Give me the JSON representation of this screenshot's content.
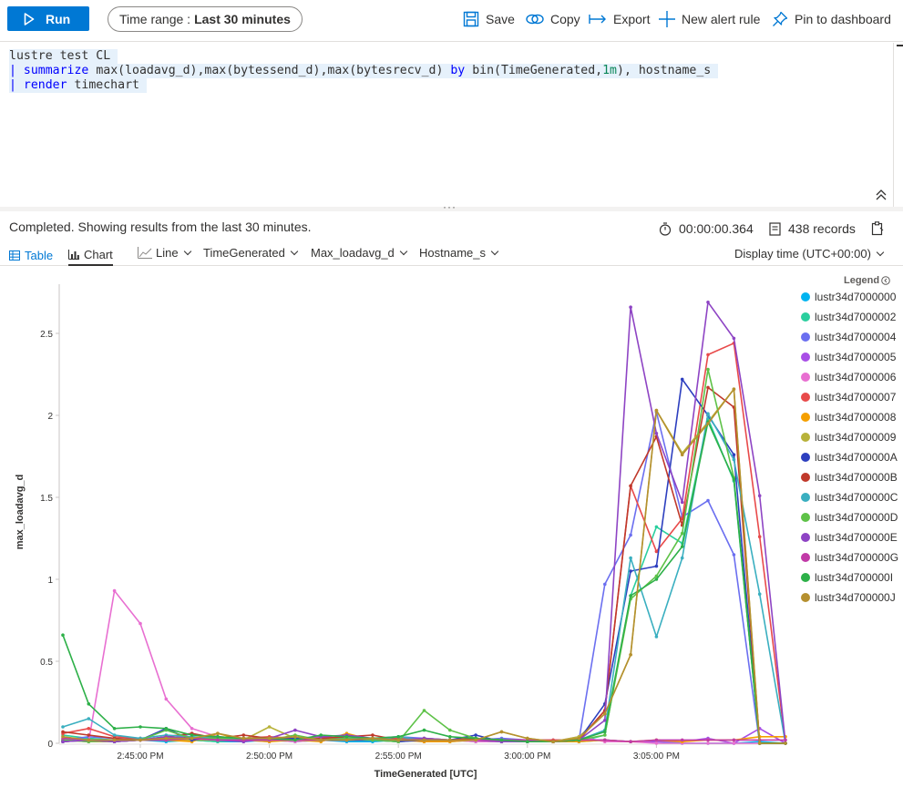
{
  "toolbar": {
    "run_label": "Run",
    "time_range_label": "Time range :",
    "time_range_value": "Last 30 minutes",
    "save_label": "Save",
    "copy_label": "Copy",
    "export_label": "Export",
    "new_alert_label": "New alert rule",
    "pin_label": "Pin to dashboard"
  },
  "query": {
    "lines": [
      "lustre test CL",
      "| summarize max(loadavg_d),max(bytessend_d),max(bytesrecv_d) by bin(TimeGenerated,1m), hostname_s",
      "| render timechart"
    ]
  },
  "results": {
    "status": "Completed. Showing results from the last 30 minutes.",
    "duration": "00:00:00.364",
    "records": "438 records",
    "display_time": "Display time (UTC+00:00)"
  },
  "tabs": {
    "table": "Table",
    "chart": "Chart"
  },
  "chart_options": {
    "type": "Line",
    "x_column": "TimeGenerated",
    "y_column": "Max_loadavg_d",
    "split_column": "Hostname_s"
  },
  "legend": {
    "title": "Legend"
  },
  "colors": {
    "accent": "#0078d4",
    "series": [
      "#00b4f0",
      "#2bcf9e",
      "#6b6ff0",
      "#a84ee6",
      "#e86fd1",
      "#e84a4a",
      "#f5a000",
      "#b8b23a",
      "#2d3fbf",
      "#c0392b",
      "#3aafc0",
      "#5ec248",
      "#8e44c4",
      "#c13aa7",
      "#2db048",
      "#b5902f"
    ]
  },
  "chart_data": {
    "type": "line",
    "xlabel": "TimeGenerated [UTC]",
    "ylabel": "max_loadavg_d",
    "ylim": [
      0,
      2.8
    ],
    "y_ticks": [
      "0",
      "0.5",
      "1",
      "1.5",
      "2",
      "2.5"
    ],
    "x_ticks": [
      "2:45:00 PM",
      "2:50:00 PM",
      "2:55:00 PM",
      "3:00:00 PM",
      "3:05:00 PM"
    ],
    "x": [
      "2:42",
      "2:43",
      "2:44",
      "2:45",
      "2:46",
      "2:47",
      "2:48",
      "2:49",
      "2:50",
      "2:51",
      "2:52",
      "2:53",
      "2:54",
      "2:55",
      "2:56",
      "2:57",
      "2:58",
      "2:59",
      "3:00",
      "3:01",
      "3:02",
      "3:03",
      "3:04",
      "3:05",
      "3:06",
      "3:07",
      "3:08",
      "3:09",
      "3:10"
    ],
    "series": [
      {
        "name": "lustr34d7000000",
        "values": [
          0.02,
          0.03,
          0.01,
          0.02,
          0.01,
          0.02,
          0.01,
          0.01,
          0.02,
          0.01,
          0.02,
          0.01,
          0.01,
          0.02,
          0.01,
          0.01,
          0.02,
          0.01,
          0.01,
          0.01,
          0.01,
          0.02,
          0.01,
          0.01,
          0.0,
          0.0,
          0.0,
          0.01,
          0.0
        ]
      },
      {
        "name": "lustr34d7000002",
        "values": [
          0.05,
          0.03,
          0.02,
          0.03,
          0.02,
          0.02,
          0.01,
          0.02,
          0.02,
          0.02,
          0.02,
          0.02,
          0.02,
          0.01,
          0.02,
          0.02,
          0.01,
          0.02,
          0.01,
          0.01,
          0.01,
          0.05,
          0.9,
          1.32,
          1.22,
          1.98,
          1.6,
          0,
          0
        ]
      },
      {
        "name": "lustr34d7000004",
        "values": [
          0.02,
          0.04,
          0.03,
          0.02,
          0.03,
          0.04,
          0.02,
          0.02,
          0.03,
          0.02,
          0.02,
          0.02,
          0.03,
          0.04,
          0.03,
          0.02,
          0.02,
          0.03,
          0.02,
          0.02,
          0.02,
          0.97,
          1.27,
          2.02,
          1.38,
          1.48,
          1.15,
          0,
          0
        ]
      },
      {
        "name": "lustr34d7000005",
        "values": [
          0.01,
          0.02,
          0.01,
          0.02,
          0.02,
          0.06,
          0.02,
          0.02,
          0.01,
          0.03,
          0.04,
          0.03,
          0.03,
          0.02,
          0.03,
          0.02,
          0.02,
          0.02,
          0.02,
          0.01,
          0.02,
          0.02,
          0.01,
          0.01,
          0.01,
          0.03,
          0.0,
          0.09,
          0.0
        ]
      },
      {
        "name": "lustr34d7000006",
        "values": [
          0.02,
          0.01,
          0.93,
          0.73,
          0.27,
          0.09,
          0.04,
          0.02,
          0.02,
          0.01,
          0.02,
          0.02,
          0.02,
          0.03,
          0.01,
          0.02,
          0.01,
          0.01,
          0.01,
          0.01,
          0.04,
          0.01,
          0.01,
          0.0,
          0.0,
          0.0,
          0.0,
          0.0,
          0.0
        ]
      },
      {
        "name": "lustr34d7000007",
        "values": [
          0.06,
          0.09,
          0.04,
          0.03,
          0.02,
          0.02,
          0.04,
          0.03,
          0.04,
          0.03,
          0.03,
          0.02,
          0.03,
          0.03,
          0.02,
          0.02,
          0.03,
          0.02,
          0.02,
          0.02,
          0.02,
          0.2,
          1.57,
          1.17,
          1.37,
          2.37,
          2.44,
          1.26,
          0
        ]
      },
      {
        "name": "lustr34d7000008",
        "values": [
          0.01,
          0.02,
          0.01,
          0.02,
          0.02,
          0.01,
          0.06,
          0.02,
          0.01,
          0.02,
          0.01,
          0.06,
          0.02,
          0.02,
          0.01,
          0.01,
          0.02,
          0.01,
          0.01,
          0.01,
          0.01,
          0.02,
          0.01,
          0.02,
          0.01,
          0.02,
          0.02,
          0.04,
          0.04
        ]
      },
      {
        "name": "lustr34d7000009",
        "values": [
          0.02,
          0.01,
          0.01,
          0.02,
          0.03,
          0.02,
          0.02,
          0.02,
          0.1,
          0.03,
          0.02,
          0.02,
          0.02,
          0.01,
          0.03,
          0.02,
          0.02,
          0.07,
          0.03,
          0.01,
          0.04,
          0.18,
          0.54,
          2.03,
          1.77,
          1.96,
          2.16,
          0,
          0
        ]
      },
      {
        "name": "lustr34d700000A",
        "values": [
          0.01,
          0.02,
          0.01,
          0.02,
          0.09,
          0.02,
          0.04,
          0.02,
          0.02,
          0.03,
          0.02,
          0.02,
          0.02,
          0.01,
          0.02,
          0.02,
          0.05,
          0.01,
          0.01,
          0.01,
          0.02,
          0.24,
          1.05,
          1.08,
          2.22,
          2.0,
          1.76,
          0,
          0
        ]
      },
      {
        "name": "lustr34d700000B",
        "values": [
          0.07,
          0.05,
          0.03,
          0.02,
          0.04,
          0.06,
          0.03,
          0.05,
          0.03,
          0.02,
          0.03,
          0.04,
          0.05,
          0.02,
          0.02,
          0.02,
          0.03,
          0.02,
          0.01,
          0.01,
          0.02,
          0.2,
          1.57,
          1.87,
          1.33,
          2.17,
          2.05,
          0,
          0
        ]
      },
      {
        "name": "lustr34d700000C",
        "values": [
          0.1,
          0.15,
          0.05,
          0.03,
          0.05,
          0.04,
          0.03,
          0.02,
          0.02,
          0.02,
          0.02,
          0.03,
          0.02,
          0.04,
          0.02,
          0.02,
          0.02,
          0.01,
          0.01,
          0.01,
          0.02,
          0.08,
          1.13,
          0.65,
          1.13,
          2.01,
          1.73,
          0.91,
          0
        ]
      },
      {
        "name": "lustr34d700000D",
        "values": [
          0.02,
          0.01,
          0.02,
          0.02,
          0.08,
          0.03,
          0.03,
          0.03,
          0.02,
          0.05,
          0.02,
          0.03,
          0.02,
          0.01,
          0.2,
          0.08,
          0.03,
          0.02,
          0.01,
          0.01,
          0.02,
          0.05,
          0.88,
          1.02,
          1.28,
          2.28,
          1.62,
          0,
          0
        ]
      },
      {
        "name": "lustr34d700000E",
        "values": [
          0.01,
          0.02,
          0.01,
          0.02,
          0.04,
          0.03,
          0.02,
          0.01,
          0.03,
          0.08,
          0.04,
          0.05,
          0.03,
          0.02,
          0.03,
          0.02,
          0.02,
          0.01,
          0.01,
          0.01,
          0.02,
          0.14,
          2.66,
          1.89,
          1.47,
          2.69,
          2.47,
          1.51,
          0
        ]
      },
      {
        "name": "lustr34d700000G",
        "values": [
          0.03,
          0.02,
          0.02,
          0.02,
          0.02,
          0.03,
          0.02,
          0.02,
          0.02,
          0.02,
          0.02,
          0.02,
          0.03,
          0.02,
          0.02,
          0.02,
          0.02,
          0.02,
          0.02,
          0.01,
          0.02,
          0.02,
          0.01,
          0.02,
          0.02,
          0.02,
          0.02,
          0.02,
          0.02
        ]
      },
      {
        "name": "lustr34d700000I",
        "values": [
          0.66,
          0.24,
          0.09,
          0.1,
          0.09,
          0.05,
          0.04,
          0.03,
          0.03,
          0.02,
          0.05,
          0.04,
          0.03,
          0.04,
          0.08,
          0.04,
          0.03,
          0.02,
          0.01,
          0.01,
          0.02,
          0.07,
          0.9,
          1.0,
          1.2,
          1.96,
          1.61,
          0,
          0
        ]
      },
      {
        "name": "lustr34d700000J",
        "values": [
          0.04,
          0.02,
          0.02,
          0.02,
          0.03,
          0.03,
          0.06,
          0.03,
          0.03,
          0.04,
          0.02,
          0.02,
          0.03,
          0.02,
          0.02,
          0.02,
          0.02,
          0.07,
          0.03,
          0.01,
          0.03,
          0.18,
          0.54,
          2.03,
          1.76,
          1.95,
          2.16,
          0,
          0
        ]
      }
    ]
  }
}
